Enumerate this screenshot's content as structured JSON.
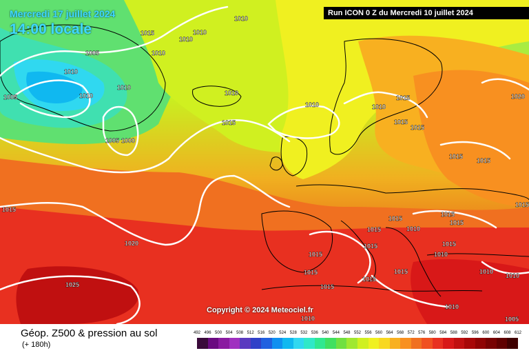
{
  "header": {
    "date": "Mercredi 17 juillet 2024",
    "time": "14:00 locale",
    "run": "Run ICON 0 Z du Mercredi 10 juillet 2024"
  },
  "copyright": "Copyright © 2024 Meteociel.fr",
  "footer": {
    "title": "Géop. Z500 & pression au sol",
    "subtitle": "(+ 180h)"
  },
  "legend": {
    "labels": [
      "492",
      "496",
      "500",
      "504",
      "508",
      "512",
      "516",
      "520",
      "524",
      "528",
      "532",
      "536",
      "540",
      "544",
      "548",
      "552",
      "556",
      "560",
      "564",
      "568",
      "572",
      "576",
      "580",
      "584",
      "588",
      "592",
      "596",
      "600",
      "604",
      "608",
      "612"
    ],
    "colors": [
      "#3a0a3a",
      "#6a0a80",
      "#8a1aa0",
      "#a030c0",
      "#5a3ac0",
      "#3040c8",
      "#2060e0",
      "#1090f0",
      "#10b8f0",
      "#30d8f0",
      "#30e8c8",
      "#30e890",
      "#40e060",
      "#70e040",
      "#a0e830",
      "#d0f020",
      "#f0f020",
      "#f8d820",
      "#f8b020",
      "#f89020",
      "#f07020",
      "#f05020",
      "#e83020",
      "#d81818",
      "#c01010",
      "#a80808",
      "#900404",
      "#780202",
      "#600000",
      "#400000"
    ]
  },
  "isobars": [
    "1015",
    "1010",
    "1005",
    "1010",
    "1010",
    "1010",
    "1010",
    "1010",
    "1005",
    "1010",
    "1010",
    "1005",
    "1000",
    "1015",
    "1010",
    "1015",
    "1010",
    "1015",
    "1015",
    "1015",
    "1020",
    "1015",
    "1015",
    "1015",
    "1020",
    "1025",
    "1015",
    "1015",
    "1015",
    "1015",
    "1015",
    "1015",
    "1015",
    "1015",
    "1015",
    "1010",
    "1010",
    "1010",
    "1015",
    "1010",
    "1010",
    "1005",
    "1010",
    "1015"
  ]
}
